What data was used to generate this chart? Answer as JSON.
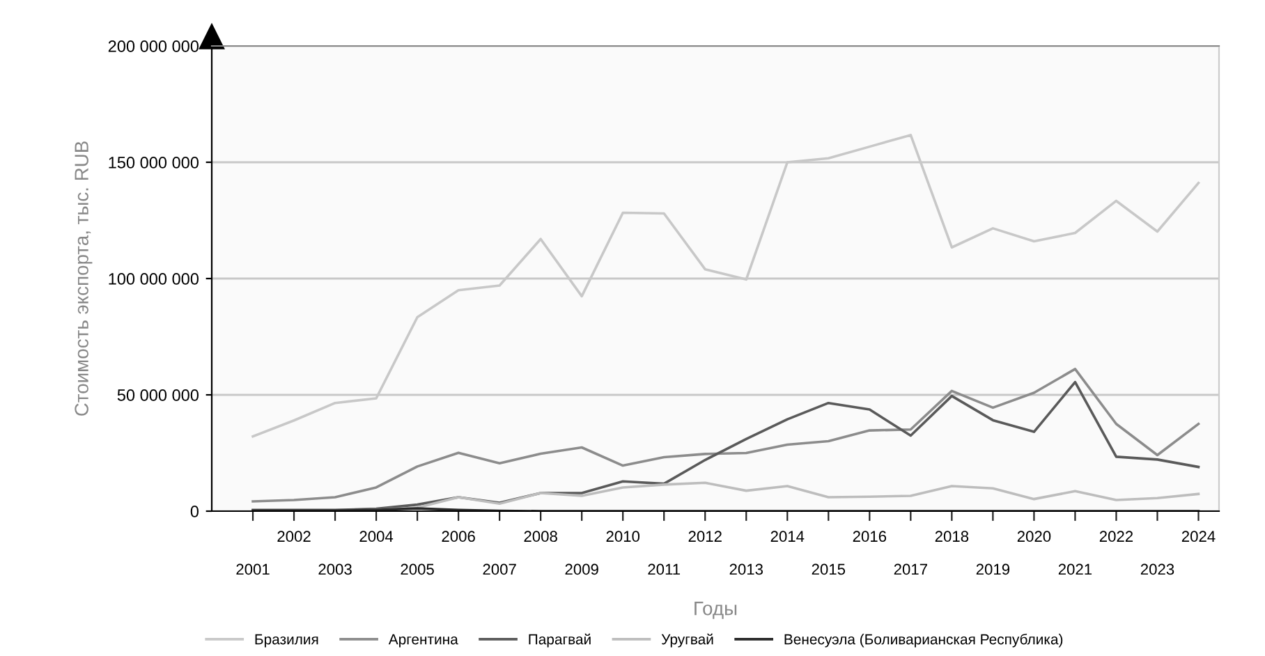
{
  "chart_data": {
    "type": "line",
    "xlabel": "Годы",
    "ylabel": "Стоимость экспорта, тыс. RUB",
    "categories": [
      "2001",
      "2002",
      "2003",
      "2004",
      "2005",
      "2006",
      "2007",
      "2008",
      "2009",
      "2010",
      "2011",
      "2012",
      "2013",
      "2014",
      "2015",
      "2016",
      "2017",
      "2018",
      "2019",
      "2020",
      "2021",
      "2022",
      "2023",
      "2024"
    ],
    "series": [
      {
        "name": "Бразилия",
        "color": "#c8c8c8",
        "values": [
          32100000,
          39000000,
          46500000,
          48500000,
          83400000,
          95000000,
          97000000,
          117000000,
          92400000,
          128300000,
          128000000,
          104000000,
          99600000,
          150000000,
          151700000,
          156700000,
          161700000,
          113400000,
          121600000,
          116000000,
          119600000,
          133400000,
          120200000,
          141100000
        ]
      },
      {
        "name": "Аргентина",
        "color": "#8c8c8c",
        "values": [
          4200000,
          4800000,
          6000000,
          10200000,
          19200000,
          25100000,
          20600000,
          24700000,
          27400000,
          19600000,
          23200000,
          24600000,
          25000000,
          28600000,
          30100000,
          34700000,
          35100000,
          51700000,
          44500000,
          50900000,
          61100000,
          37500000,
          24100000,
          37500000
        ]
      },
      {
        "name": "Парагвай",
        "color": "#5a5a5a",
        "values": [
          500000,
          500000,
          500000,
          1000000,
          2800000,
          6000000,
          3600000,
          7800000,
          7800000,
          12800000,
          11800000,
          22000000,
          31000000,
          39500000,
          46500000,
          43700000,
          32500000,
          49500000,
          39100000,
          34100000,
          55500000,
          23400000,
          22200000,
          19000000
        ]
      },
      {
        "name": "Уругвай",
        "color": "#bdbdbd",
        "values": [
          0,
          0,
          0,
          500000,
          1500000,
          6000000,
          3200000,
          7800000,
          6600000,
          10200000,
          11400000,
          12200000,
          8800000,
          10800000,
          6000000,
          6200000,
          6600000,
          10800000,
          9800000,
          5200000,
          8600000,
          4800000,
          5600000,
          7400000
        ]
      },
      {
        "name": "Венесуэла (Боливарианская Республика)",
        "color": "#282828",
        "values": [
          200000,
          200000,
          200000,
          500000,
          1200000,
          500000,
          100000,
          0,
          0,
          0,
          0,
          0,
          0,
          0,
          0,
          0,
          0,
          0,
          0,
          0,
          0,
          0,
          0,
          0
        ]
      }
    ],
    "ylim": [
      0,
      200000000
    ],
    "yticks": [
      {
        "value": 0,
        "label": "0"
      },
      {
        "value": 50000000,
        "label": "50 000 000"
      },
      {
        "value": 100000000,
        "label": "100 000 000"
      },
      {
        "value": 150000000,
        "label": "150 000 000"
      },
      {
        "value": 200000000,
        "label": "200 000 000"
      }
    ],
    "grid": "y",
    "legend": "bottom",
    "marker": "none",
    "line_style": "solid"
  }
}
